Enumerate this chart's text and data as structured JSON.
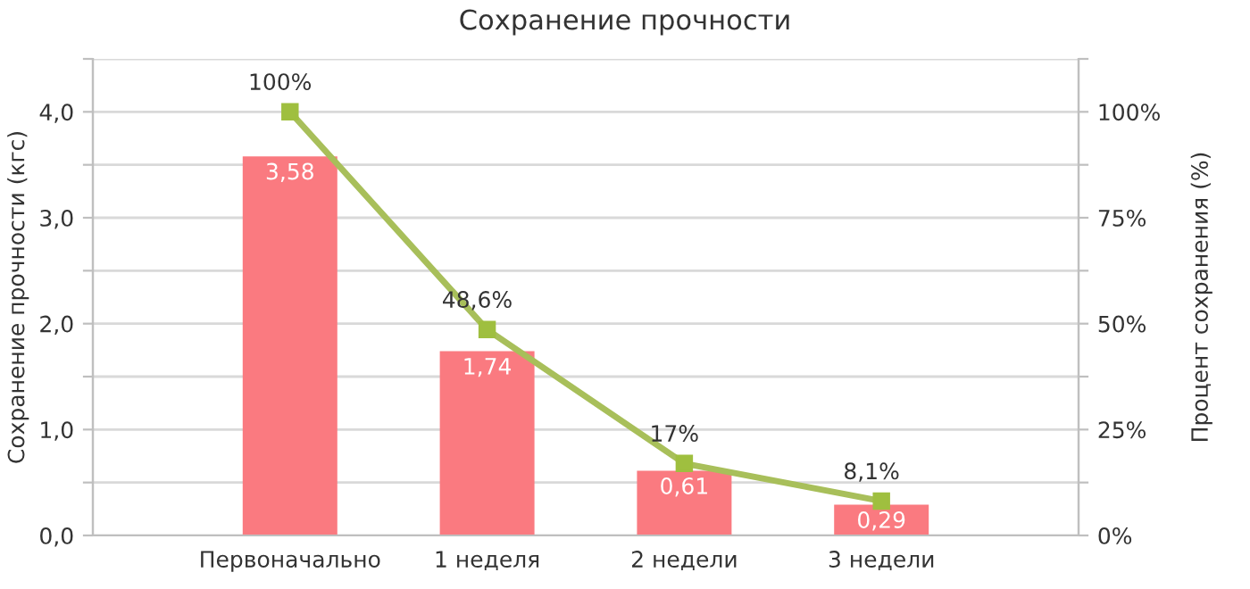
{
  "chart_data": {
    "type": "bar",
    "title": "Сохранение прочности",
    "ylabel": "Сохранение прочности (кгс)",
    "y2label": "Процент сохранения (%)",
    "categories": [
      "Первоначально",
      "1 неделя",
      "2 недели",
      "3 недели"
    ],
    "series": [
      {
        "color": "#fa7a80",
        "values": [
          3.58,
          1.74,
          0.61,
          0.29
        ],
        "value_labels": [
          "3,58",
          "1,74",
          "0,61",
          "0,29"
        ]
      },
      {
        "type": "line",
        "axis": "y2",
        "color": "#a8bf5a",
        "marker": "square",
        "values": [
          100,
          48.6,
          17,
          8.1
        ],
        "value_labels": [
          "100%",
          "48,6%",
          "17%",
          "8,1%"
        ]
      }
    ],
    "ylim": [
      0,
      4.5
    ],
    "yticks": [
      {
        "value": 0,
        "label": "0,0"
      },
      {
        "value": 0.5,
        "label": null
      },
      {
        "value": 1,
        "label": "1,0"
      },
      {
        "value": 1.5,
        "label": null
      },
      {
        "value": 2,
        "label": "2,0"
      },
      {
        "value": 2.5,
        "label": null
      },
      {
        "value": 3,
        "label": "3,0"
      },
      {
        "value": 3.5,
        "label": null
      },
      {
        "value": 4,
        "label": "4,0"
      },
      {
        "value": 4.5,
        "label": null
      }
    ],
    "y2lim": [
      0,
      112.5
    ],
    "y2ticks": [
      {
        "value": 0,
        "label": "0%"
      },
      {
        "value": 12.5,
        "label": null
      },
      {
        "value": 25,
        "label": "25%"
      },
      {
        "value": 37.5,
        "label": null
      },
      {
        "value": 50,
        "label": "50%"
      },
      {
        "value": 62.5,
        "label": null
      },
      {
        "value": 75,
        "label": "75%"
      },
      {
        "value": 87.5,
        "label": null
      },
      {
        "value": 100,
        "label": "100%"
      },
      {
        "value": 112.5,
        "label": null
      }
    ],
    "grid": "y"
  }
}
